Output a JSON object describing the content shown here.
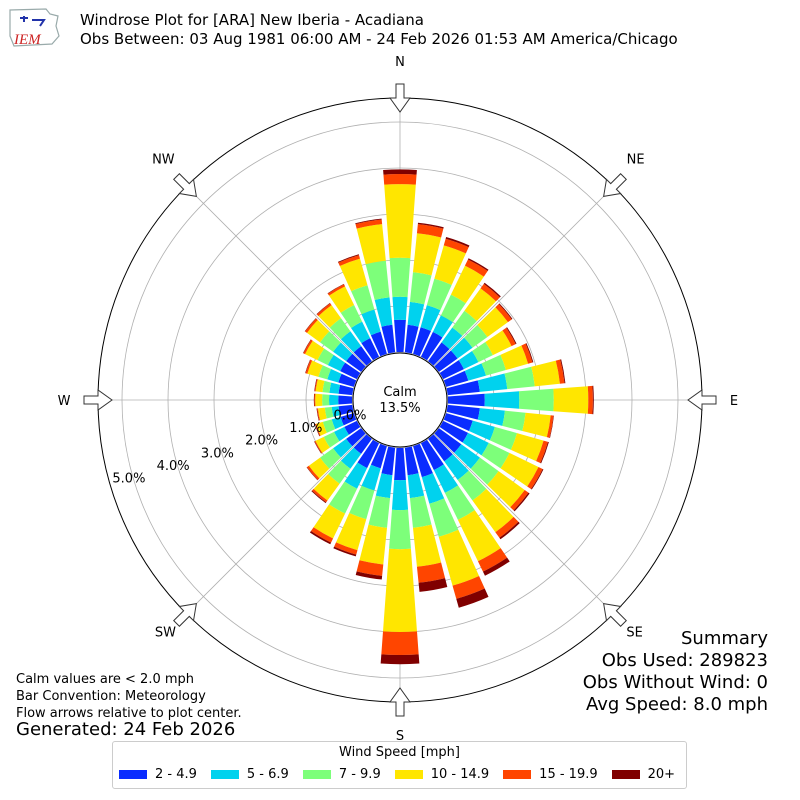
{
  "header": {
    "title_line1": "Windrose Plot for [ARA] New Iberia - Acadiana",
    "title_line2": "Obs Between: 03 Aug 1981 06:00 AM - 24 Feb 2026 01:53 AM America/Chicago",
    "logo_text": "IEM"
  },
  "notes": {
    "line1": "Calm values are < 2.0 mph",
    "line2": "Bar Convention: Meteorology",
    "line3": "Flow arrows relative to plot center.",
    "generated": "Generated: 24 Feb 2026"
  },
  "summary": {
    "title": "Summary",
    "obs_used": "Obs Used: 289823",
    "obs_without_wind": "Obs Without Wind: 0",
    "avg_speed": "Avg Speed: 8.0 mph"
  },
  "legend": {
    "title": "Wind Speed [mph]",
    "items": [
      {
        "label": "2 - 4.9",
        "color": "#0a2cff"
      },
      {
        "label": "5 - 6.9",
        "color": "#00d2ee"
      },
      {
        "label": "7 - 9.9",
        "color": "#7dff7a"
      },
      {
        "label": "10 - 14.9",
        "color": "#ffe600"
      },
      {
        "label": "15 - 19.9",
        "color": "#ff4500"
      },
      {
        "label": "20+",
        "color": "#800000"
      }
    ]
  },
  "chart_data": {
    "type": "windrose",
    "direction_labels": [
      "N",
      "NE",
      "E",
      "SE",
      "S",
      "SW",
      "W",
      "NW"
    ],
    "radial_labels": [
      "0.0%",
      "1.0%",
      "2.0%",
      "3.0%",
      "4.0%",
      "5.0%"
    ],
    "radial_ticks": [
      0,
      1,
      2,
      3,
      4,
      5
    ],
    "calm_label": "Calm",
    "calm_value": "13.5%",
    "speed_bins": [
      "2 - 4.9",
      "5 - 6.9",
      "7 - 9.9",
      "10 - 14.9",
      "15 - 19.9",
      "20+"
    ],
    "directions_deg": [
      0,
      10,
      20,
      30,
      40,
      50,
      60,
      70,
      80,
      90,
      100,
      110,
      120,
      130,
      140,
      150,
      160,
      170,
      180,
      190,
      200,
      210,
      220,
      230,
      240,
      250,
      260,
      270,
      280,
      290,
      300,
      310,
      320,
      330,
      340,
      350
    ],
    "values": [
      [
        0.7,
        0.5,
        0.85,
        1.6,
        0.22,
        0.1
      ],
      [
        0.6,
        0.5,
        0.65,
        0.85,
        0.2,
        0.03
      ],
      [
        0.6,
        0.5,
        0.6,
        0.75,
        0.15,
        0.04
      ],
      [
        0.6,
        0.4,
        0.5,
        0.7,
        0.15,
        0.03
      ],
      [
        0.5,
        0.4,
        0.45,
        0.6,
        0.12,
        0.03
      ],
      [
        0.5,
        0.4,
        0.4,
        0.55,
        0.1,
        0.02
      ],
      [
        0.5,
        0.35,
        0.35,
        0.45,
        0.1,
        0.02
      ],
      [
        0.5,
        0.4,
        0.45,
        0.5,
        0.1,
        0.02
      ],
      [
        0.7,
        0.6,
        0.6,
        0.55,
        0.1,
        0.02
      ],
      [
        0.8,
        0.75,
        0.75,
        0.75,
        0.1,
        0.02
      ],
      [
        0.7,
        0.55,
        0.45,
        0.55,
        0.06,
        0.01
      ],
      [
        0.6,
        0.5,
        0.5,
        0.6,
        0.1,
        0.02
      ],
      [
        0.6,
        0.5,
        0.5,
        0.7,
        0.1,
        0.02
      ],
      [
        0.6,
        0.5,
        0.5,
        0.7,
        0.1,
        0.03
      ],
      [
        0.6,
        0.5,
        0.55,
        0.85,
        0.15,
        0.04
      ],
      [
        0.65,
        0.55,
        0.65,
        1.0,
        0.25,
        0.1
      ],
      [
        0.7,
        0.6,
        0.75,
        1.1,
        0.3,
        0.2
      ],
      [
        0.6,
        0.5,
        0.65,
        0.85,
        0.35,
        0.2
      ],
      [
        0.7,
        0.65,
        0.85,
        1.8,
        0.5,
        0.2
      ],
      [
        0.6,
        0.5,
        0.65,
        0.8,
        0.25,
        0.08
      ],
      [
        0.5,
        0.5,
        0.65,
        0.7,
        0.1,
        0.04
      ],
      [
        0.6,
        0.5,
        0.6,
        0.6,
        0.1,
        0.04
      ],
      [
        0.4,
        0.4,
        0.4,
        0.45,
        0.05,
        0.02
      ],
      [
        0.4,
        0.35,
        0.35,
        0.3,
        0.05,
        0.01
      ],
      [
        0.3,
        0.25,
        0.25,
        0.2,
        0.02,
        0.01
      ],
      [
        0.3,
        0.2,
        0.2,
        0.15,
        0.02,
        0.01
      ],
      [
        0.3,
        0.15,
        0.15,
        0.15,
        0.02,
        0.01
      ],
      [
        0.3,
        0.2,
        0.15,
        0.15,
        0.02,
        0.01
      ],
      [
        0.3,
        0.2,
        0.15,
        0.15,
        0.02,
        0.01
      ],
      [
        0.35,
        0.25,
        0.2,
        0.25,
        0.04,
        0.01
      ],
      [
        0.4,
        0.3,
        0.25,
        0.3,
        0.04,
        0.01
      ],
      [
        0.4,
        0.35,
        0.35,
        0.35,
        0.05,
        0.01
      ],
      [
        0.4,
        0.4,
        0.35,
        0.35,
        0.05,
        0.01
      ],
      [
        0.45,
        0.4,
        0.4,
        0.45,
        0.05,
        0.01
      ],
      [
        0.5,
        0.5,
        0.55,
        0.6,
        0.08,
        0.02
      ],
      [
        0.6,
        0.6,
        0.8,
        0.8,
        0.1,
        0.02
      ]
    ]
  }
}
